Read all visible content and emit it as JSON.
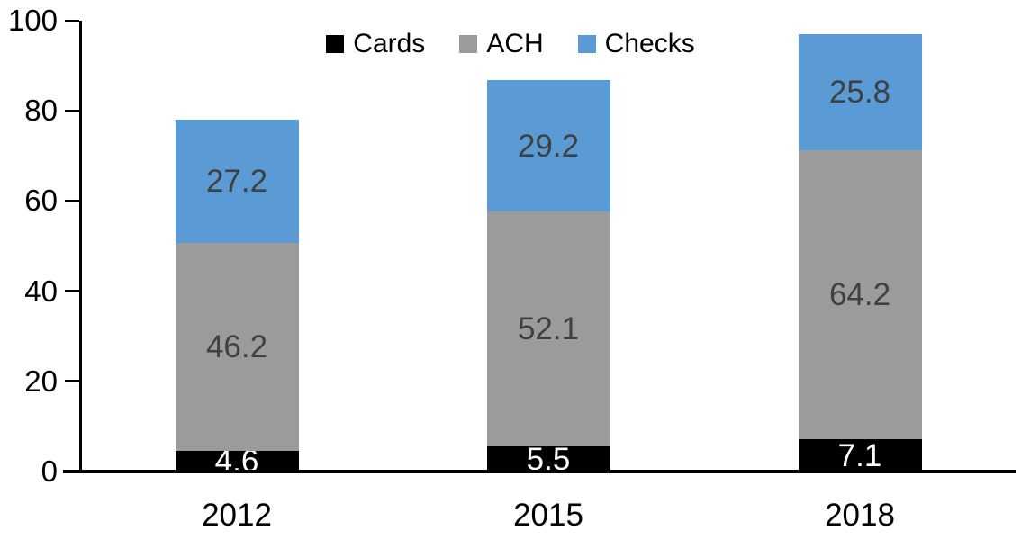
{
  "chart_data": {
    "type": "bar",
    "stacked": true,
    "title": "",
    "xlabel": "",
    "ylabel": "",
    "categories": [
      "2012",
      "2015",
      "2018"
    ],
    "series": [
      {
        "name": "Cards",
        "color": "#000000",
        "label_color": "#ffffff",
        "values": [
          4.6,
          5.5,
          7.1
        ]
      },
      {
        "name": "ACH",
        "color": "#9b9b9b",
        "label_color": "#404040",
        "values": [
          46.2,
          52.1,
          64.2
        ]
      },
      {
        "name": "Checks",
        "color": "#5b9bd5",
        "label_color": "#404040",
        "values": [
          27.2,
          29.2,
          25.8
        ]
      }
    ],
    "ylim": [
      0,
      100
    ],
    "y_ticks": [
      0,
      20,
      40,
      60,
      80,
      100
    ],
    "grid": false,
    "legend_position": "top",
    "data_labels": true,
    "axis_color": "#000000"
  }
}
